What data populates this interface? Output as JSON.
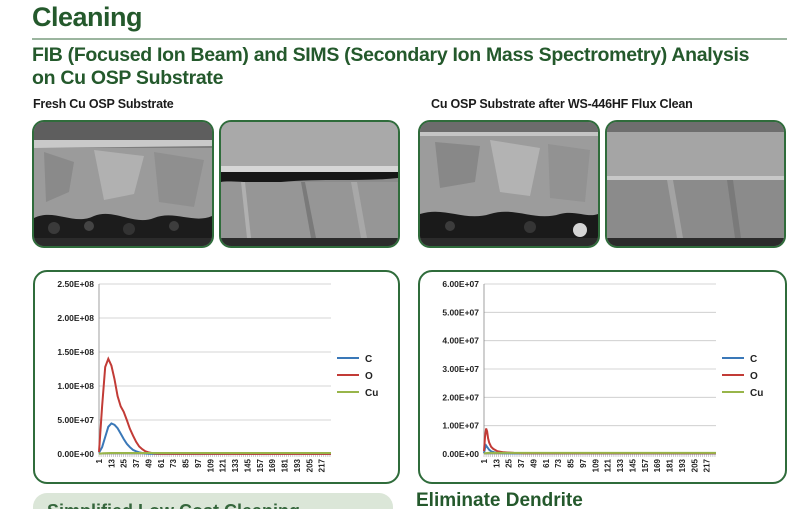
{
  "header": {
    "title": "Cleaning",
    "subtitle": "FIB (Focused Ion Beam) and SIMS (Secondary Ion Mass Spectrometry) Analysis on Cu OSP Substrate"
  },
  "captions": {
    "left": "Fresh Cu OSP Substrate",
    "right": "Cu OSP Substrate after WS-446HF Flux Clean"
  },
  "footer": {
    "left_panel_text": "Simplified Low Cost Cleaning",
    "right_heading": "Eliminate Dendrite"
  },
  "colors": {
    "brand_green": "#24592c",
    "C": "#3a78b8",
    "O": "#c23b36",
    "Cu": "#98b54a"
  },
  "chart_data": [
    {
      "type": "line",
      "ylim": [
        0,
        250000000
      ],
      "y_ticks": [
        "0.00E+00",
        "5.00E+07",
        "1.00E+08",
        "1.50E+08",
        "2.00E+08",
        "2.50E+08"
      ],
      "x_ticks": [
        "1",
        "13",
        "25",
        "37",
        "49",
        "61",
        "73",
        "85",
        "97",
        "109",
        "121",
        "133",
        "145",
        "157",
        "169",
        "181",
        "193",
        "205",
        "217"
      ],
      "xlim": [
        1,
        226
      ],
      "legend_position": "right",
      "series": [
        {
          "name": "C",
          "color": "#3a78b8",
          "x": [
            1,
            4,
            7,
            10,
            13,
            16,
            19,
            22,
            25,
            28,
            31,
            34,
            37,
            40,
            43,
            46,
            49,
            55,
            61,
            226
          ],
          "y": [
            2000000,
            10000000,
            25000000,
            40000000,
            45000000,
            43000000,
            38000000,
            30000000,
            22000000,
            15000000,
            10000000,
            6000000,
            4000000,
            2500000,
            1500000,
            800000,
            400000,
            200000,
            100000,
            100000
          ]
        },
        {
          "name": "O",
          "color": "#c23b36",
          "x": [
            1,
            4,
            7,
            10,
            13,
            16,
            19,
            22,
            25,
            28,
            31,
            34,
            37,
            40,
            43,
            46,
            49,
            52,
            55,
            61,
            226
          ],
          "y": [
            3000000,
            70000000,
            128000000,
            140000000,
            130000000,
            110000000,
            85000000,
            70000000,
            62000000,
            50000000,
            37000000,
            27000000,
            18000000,
            11000000,
            7000000,
            4000000,
            2500000,
            1500000,
            800000,
            300000,
            200000
          ]
        },
        {
          "name": "Cu",
          "color": "#98b54a",
          "x": [
            1,
            5,
            13,
            226
          ],
          "y": [
            500000,
            1000000,
            1500000,
            1500000
          ]
        }
      ]
    },
    {
      "type": "line",
      "ylim": [
        0,
        60000000
      ],
      "y_ticks": [
        "0.00E+00",
        "1.00E+07",
        "2.00E+07",
        "3.00E+07",
        "4.00E+07",
        "5.00E+07",
        "6.00E+07"
      ],
      "x_ticks": [
        "1",
        "13",
        "25",
        "37",
        "49",
        "61",
        "73",
        "85",
        "97",
        "109",
        "121",
        "133",
        "145",
        "157",
        "169",
        "181",
        "193",
        "205",
        "217"
      ],
      "xlim": [
        1,
        226
      ],
      "legend_position": "right",
      "series": [
        {
          "name": "C",
          "color": "#3a78b8",
          "x": [
            1,
            2,
            3,
            4,
            6,
            8,
            12,
            20,
            30,
            226
          ],
          "y": [
            300000,
            2000000,
            3000000,
            2500000,
            1500000,
            900000,
            500000,
            300000,
            200000,
            200000
          ]
        },
        {
          "name": "O",
          "color": "#c23b36",
          "x": [
            1,
            2,
            3,
            4,
            5,
            6,
            8,
            10,
            14,
            20,
            30,
            40,
            226
          ],
          "y": [
            1000000,
            6000000,
            9000000,
            8000000,
            5500000,
            4000000,
            2500000,
            1800000,
            1000000,
            600000,
            400000,
            300000,
            300000
          ]
        },
        {
          "name": "Cu",
          "color": "#98b54a",
          "x": [
            1,
            5,
            226
          ],
          "y": [
            200000,
            400000,
            400000
          ]
        }
      ]
    }
  ]
}
